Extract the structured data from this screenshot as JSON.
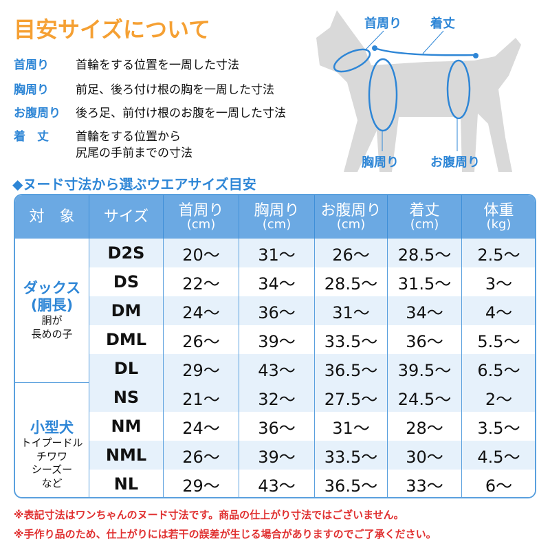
{
  "title": "目安サイズについて",
  "definitions": [
    {
      "term": "首周り",
      "desc": "首輪をする位置を一周した寸法"
    },
    {
      "term": "胸周り",
      "desc": "前足、後ろ付け根の胸を一周した寸法"
    },
    {
      "term": "お腹周り",
      "desc": "後ろ足、前付け根のお腹を一周した寸法"
    },
    {
      "term": "着　丈",
      "desc": "首輪をする位置から",
      "desc2": "尻尾の手前までの寸法"
    }
  ],
  "diagram": {
    "neck": "首周り",
    "length": "着丈",
    "chest": "胸周り",
    "belly": "お腹周り"
  },
  "subtitle": "◆ヌード寸法から選ぶウエアサイズ目安",
  "colors": {
    "accent": "#2e86d6",
    "title": "#f5a033",
    "header": "#6ba9e3",
    "stripe": "#e6f1fb",
    "note": "#e03030"
  },
  "table": {
    "headers": [
      {
        "a": "対　象",
        "b": ""
      },
      {
        "a": "サイズ",
        "b": ""
      },
      {
        "a": "首周り",
        "b": "(cm)"
      },
      {
        "a": "胸周り",
        "b": "(cm)"
      },
      {
        "a": "お腹周り",
        "b": "(cm)"
      },
      {
        "a": "着丈",
        "b": "(cm)"
      },
      {
        "a": "体重",
        "b": "(kg)"
      }
    ],
    "groups": [
      {
        "name": "ダックス",
        "name2": "(胴長)",
        "sub": [
          "胴が",
          "長めの子"
        ]
      },
      {
        "name": "小型犬",
        "name2": "",
        "sub": [
          "トイプードル",
          "チワワ",
          "シーズー",
          "など"
        ]
      }
    ],
    "rows": [
      [
        "D2S",
        "20～",
        "31～",
        "26～",
        "28.5～",
        "2.5～"
      ],
      [
        "DS",
        "22～",
        "34～",
        "28.5～",
        "31.5～",
        "3～"
      ],
      [
        "DM",
        "24～",
        "36～",
        "31～",
        "34～",
        "4～"
      ],
      [
        "DML",
        "26～",
        "39～",
        "33.5～",
        "36～",
        "5.5～"
      ],
      [
        "DL",
        "29～",
        "43～",
        "36.5～",
        "39.5～",
        "6.5～"
      ],
      [
        "NS",
        "21～",
        "32～",
        "27.5～",
        "24.5～",
        "2～"
      ],
      [
        "NM",
        "24～",
        "36～",
        "31～",
        "28～",
        "3.5～"
      ],
      [
        "NML",
        "26～",
        "39～",
        "33.5～",
        "30～",
        "4.5～"
      ],
      [
        "NL",
        "29～",
        "43～",
        "36.5～",
        "33～",
        "6～"
      ]
    ]
  },
  "notes": [
    "※表記寸法はワンちゃんのヌード寸法です。商品の仕上がり寸法ではございません。",
    "※手作り品のため、仕上がりには若干の誤差が生じる場合がありますのでご了承ください。"
  ]
}
